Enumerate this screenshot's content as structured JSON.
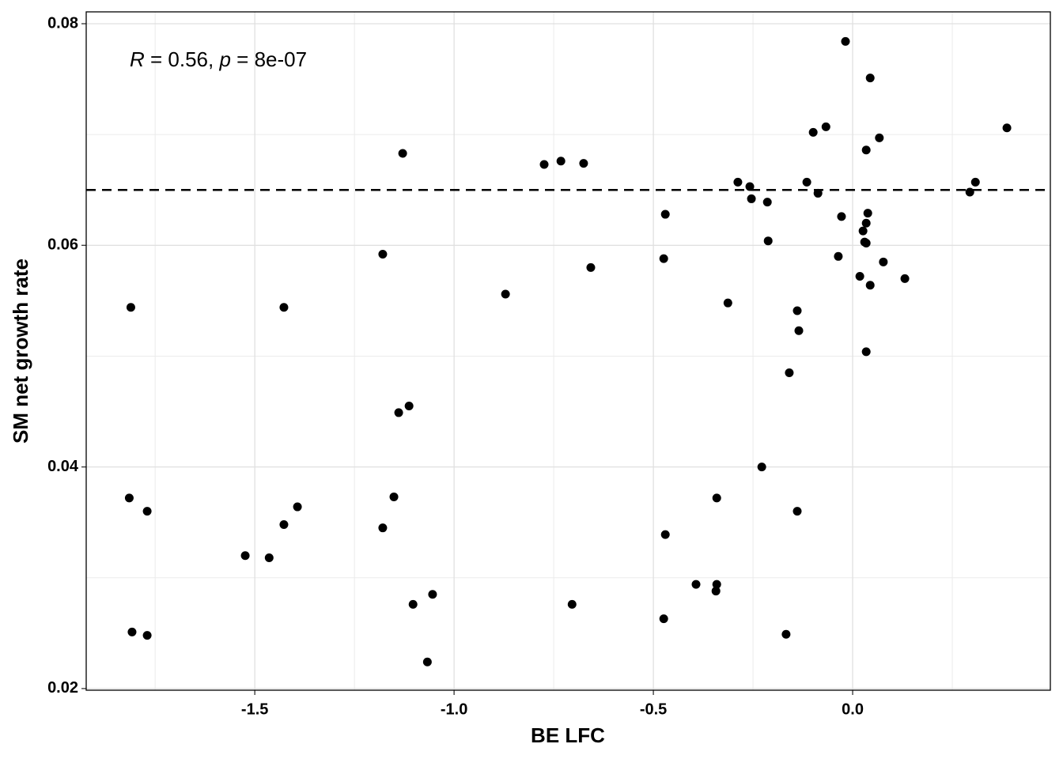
{
  "chart_data": {
    "type": "scatter",
    "xlabel": "BE LFC",
    "ylabel": "SM net growth rate",
    "annotation": [
      {
        "text": "R",
        "italic": true
      },
      {
        "text": " = 0.56, ",
        "italic": false
      },
      {
        "text": "p",
        "italic": true
      },
      {
        "text": " = 8e-07",
        "italic": false
      }
    ],
    "hline": {
      "value": 0.065,
      "dashed": true,
      "color": "#000000"
    },
    "xlim": [
      -1.923,
      0.496
    ],
    "ylim": [
      0.01985,
      0.08107
    ],
    "xticks": [
      -1.5,
      {
        "value": -1,
        "label": "-1.0"
      },
      -0.5,
      {
        "value": 0,
        "label": "0.0"
      }
    ],
    "yticks": [
      0.02,
      0.04,
      0.06,
      0.08
    ],
    "minor_xticks": [
      -1.75,
      -1.25,
      -0.75,
      -0.25,
      0.25
    ],
    "minor_yticks": [
      0.03,
      0.05,
      0.07
    ],
    "grid": true,
    "series": [
      {
        "color": "#000000",
        "x": [
          -1.811,
          -1.815,
          -1.77,
          -1.808,
          -1.77,
          -1.524,
          -1.464,
          -1.427,
          -1.427,
          -1.393,
          -1.179,
          -1.179,
          -1.129,
          -1.139,
          -1.113,
          -1.151,
          -1.103,
          -1.054,
          -1.067,
          -0.871,
          -0.774,
          -0.732,
          -0.675,
          -0.657,
          -0.704,
          -0.47,
          -0.474,
          -0.47,
          -0.474,
          -0.393,
          -0.341,
          -0.343,
          -0.341,
          -0.313,
          -0.288,
          -0.258,
          -0.254,
          -0.214,
          -0.212,
          -0.228,
          -0.159,
          -0.167,
          -0.139,
          -0.135,
          -0.139,
          -0.115,
          -0.099,
          -0.087,
          -0.067,
          -0.018,
          -0.036,
          -0.028,
          0.018,
          0.026,
          0.03,
          0.034,
          0.034,
          0.038,
          0.034,
          0.044,
          0.044,
          0.034,
          0.067,
          0.077,
          0.131,
          0.294,
          0.308,
          0.387
        ],
        "values": [
          0.0544,
          0.0372,
          0.036,
          0.0251,
          0.0248,
          0.032,
          0.0318,
          0.0544,
          0.0348,
          0.0364,
          0.0592,
          0.0345,
          0.0683,
          0.0449,
          0.0455,
          0.0373,
          0.0276,
          0.0285,
          0.0224,
          0.0556,
          0.0673,
          0.0676,
          0.0674,
          0.058,
          0.0276,
          0.0628,
          0.0588,
          0.0339,
          0.0263,
          0.0294,
          0.0294,
          0.0288,
          0.0372,
          0.0548,
          0.0657,
          0.0653,
          0.0642,
          0.0639,
          0.0604,
          0.04,
          0.0485,
          0.0249,
          0.0541,
          0.0523,
          0.036,
          0.0657,
          0.0702,
          0.0647,
          0.0707,
          0.0784,
          0.059,
          0.0626,
          0.0572,
          0.0613,
          0.0603,
          0.0602,
          0.062,
          0.0629,
          0.0686,
          0.0751,
          0.0564,
          0.0504,
          0.0697,
          0.0585,
          0.057,
          0.0648,
          0.0657,
          0.0706
        ]
      }
    ]
  }
}
